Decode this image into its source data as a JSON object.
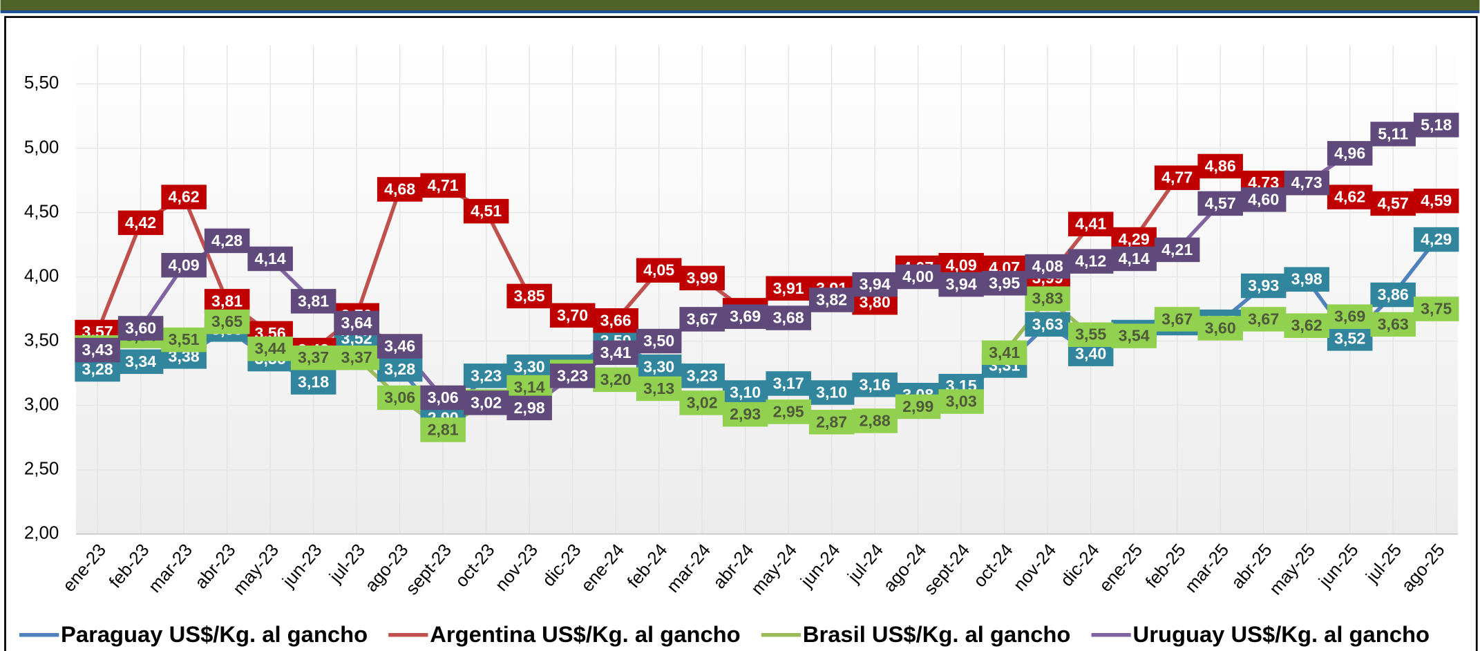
{
  "chart_data": {
    "type": "line",
    "categories": [
      "ene-23",
      "feb-23",
      "mar-23",
      "abr-23",
      "may-23",
      "jun-23",
      "jul-23",
      "ago-23",
      "sept-23",
      "oct-23",
      "nov-23",
      "dic-23",
      "ene-24",
      "feb-24",
      "mar-24",
      "abr-24",
      "may-24",
      "jun-24",
      "jul-24",
      "ago-24",
      "sept-24",
      "oct-24",
      "nov-24",
      "dic-24",
      "ene-25",
      "feb-25",
      "mar-25",
      "abr-25",
      "may-25",
      "jun-25",
      "jul-25",
      "ago-25"
    ],
    "series": [
      {
        "name": "Paraguay US$/Kg. al gancho",
        "color": "#4f81bd",
        "label_color": "#31859c",
        "label_text_color": "#ffffff",
        "values": [
          3.28,
          3.34,
          3.38,
          3.59,
          3.36,
          3.18,
          3.52,
          3.28,
          2.9,
          3.23,
          3.3,
          3.3,
          3.5,
          3.3,
          3.23,
          3.1,
          3.17,
          3.1,
          3.16,
          3.08,
          3.15,
          3.31,
          3.63,
          3.4,
          3.57,
          3.64,
          3.65,
          3.93,
          3.98,
          3.52,
          3.86,
          4.29
        ],
        "value_labels": [
          "3,28",
          "3,34",
          "3,38",
          "3,59",
          "3,36",
          "3,18",
          "3,52",
          "3,28",
          "2,90",
          "3,23",
          "3,30",
          "3,30",
          "3,50",
          "3,30",
          "3,23",
          "3,10",
          "3,17",
          "3,10",
          "3,16",
          "3,08",
          "3,15",
          "3,31",
          "3,63",
          "3,40",
          "3,57",
          "3,64",
          "3,65",
          "3,93",
          "3,98",
          "3,52",
          "3,86",
          "4,29"
        ]
      },
      {
        "name": "Argentina US$/Kg. al gancho",
        "color": "#c0504d",
        "label_color": "#c00000",
        "label_text_color": "#ffffff",
        "values": [
          3.57,
          4.42,
          4.62,
          3.81,
          3.56,
          3.43,
          3.7,
          4.68,
          4.71,
          4.51,
          3.85,
          3.7,
          3.66,
          4.05,
          3.99,
          3.74,
          3.91,
          3.91,
          3.8,
          4.07,
          4.09,
          4.07,
          3.99,
          4.41,
          4.29,
          4.77,
          4.86,
          4.73,
          4.73,
          4.62,
          4.57,
          4.59
        ],
        "value_labels": [
          "3,57",
          "4,42",
          "4,62",
          "3,81",
          "3,56",
          "3,43",
          "3,70",
          "4,68",
          "4,71",
          "4,51",
          "3,85",
          "3,70",
          "3,66",
          "4,05",
          "3,99",
          "3,74",
          "3,91",
          "3,91",
          "3,80",
          "4,07",
          "4,09",
          "4,07",
          "3,99",
          "4,41",
          "4,29",
          "4,77",
          "4,86",
          "4,73",
          "4,73",
          "4,62",
          "4,57",
          "4,59"
        ]
      },
      {
        "name": "Brasil US$/Kg. al gancho",
        "color": "#9bbb59",
        "label_color": "#92d050",
        "label_text_color": "#4f5a3a",
        "values": [
          3.45,
          3.54,
          3.51,
          3.65,
          3.44,
          3.37,
          3.37,
          3.06,
          2.81,
          3.03,
          3.14,
          3.26,
          3.2,
          3.13,
          3.02,
          2.93,
          2.95,
          2.87,
          2.88,
          2.99,
          3.03,
          3.41,
          3.83,
          3.55,
          3.54,
          3.67,
          3.6,
          3.67,
          3.62,
          3.69,
          3.63,
          3.75
        ],
        "value_labels": [
          "3,45",
          "3,54",
          "3,51",
          "3,65",
          "3,44",
          "3,37",
          "3,37",
          "3,06",
          "2,81",
          "3,03",
          "3,14",
          "3,26",
          "3,20",
          "3,13",
          "3,02",
          "2,93",
          "2,95",
          "2,87",
          "2,88",
          "2,99",
          "3,03",
          "3,41",
          "3,83",
          "3,55",
          "3,54",
          "3,67",
          "3,60",
          "3,67",
          "3,62",
          "3,69",
          "3,63",
          "3,75"
        ]
      },
      {
        "name": "Uruguay US$/Kg. al gancho",
        "color": "#8064a2",
        "label_color": "#604a7b",
        "label_text_color": "#ffffff",
        "values": [
          3.43,
          3.6,
          4.09,
          4.28,
          4.14,
          3.81,
          3.64,
          3.46,
          3.06,
          3.02,
          2.98,
          3.23,
          3.41,
          3.5,
          3.67,
          3.69,
          3.68,
          3.82,
          3.94,
          4.0,
          3.94,
          3.95,
          4.08,
          4.12,
          4.14,
          4.21,
          4.57,
          4.6,
          4.73,
          4.96,
          5.11,
          5.18
        ],
        "value_labels": [
          "3,43",
          "3,60",
          "4,09",
          "4,28",
          "4,14",
          "3,81",
          "3,64",
          "3,46",
          "3,06",
          "3,02",
          "2,98",
          "3,23",
          "3,41",
          "3,50",
          "3,67",
          "3,69",
          "3,68",
          "3,82",
          "3,94",
          "4,00",
          "3,94",
          "3,95",
          "4,08",
          "4,12",
          "4,14",
          "4,21",
          "4,57",
          "4,60",
          "4,73",
          "4,96",
          "5,11",
          "5,18"
        ]
      }
    ],
    "ylim": [
      2,
      5.8
    ],
    "yticks": [
      {
        "value": 2,
        "label": "2,00"
      },
      {
        "value": 2.5,
        "label": "2,50"
      },
      {
        "value": 3,
        "label": "3,00"
      },
      {
        "value": 3.5,
        "label": "3,50"
      },
      {
        "value": 4,
        "label": "4,00"
      },
      {
        "value": 4.5,
        "label": "4,50"
      },
      {
        "value": 5,
        "label": "5,00"
      },
      {
        "value": 5.5,
        "label": "5,50"
      }
    ],
    "grid": true,
    "legend": "bottom"
  }
}
